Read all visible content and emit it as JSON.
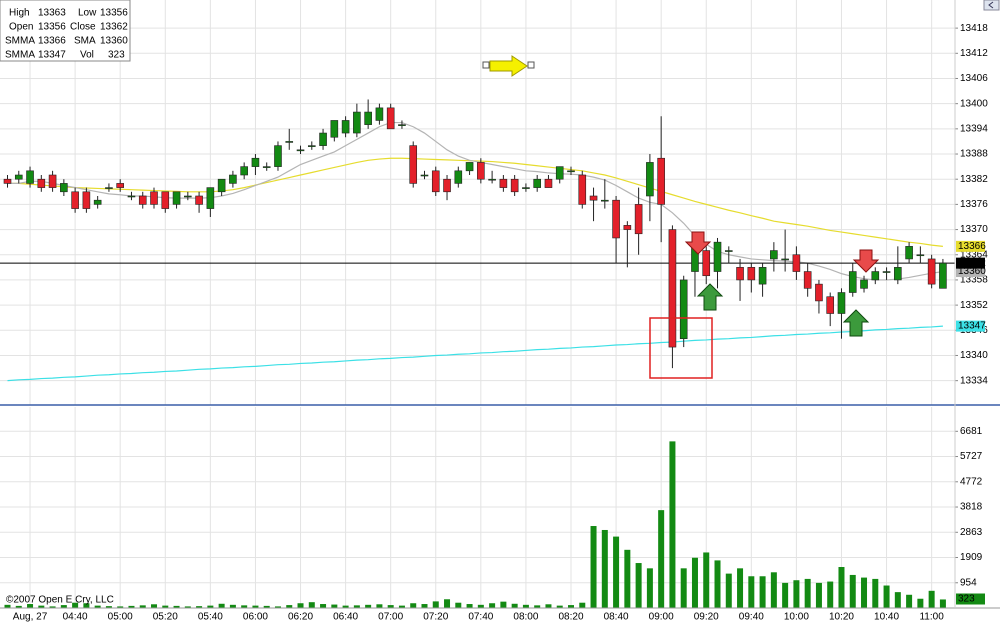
{
  "chart_data": {
    "type": "candlestick",
    "categories": [
      null,
      null,
      "Aug, 27",
      null,
      null,
      null,
      "04:40",
      null,
      null,
      null,
      "05:00",
      null,
      null,
      null,
      "05:20",
      null,
      null,
      null,
      "05:40",
      null,
      null,
      null,
      "06:00",
      null,
      null,
      null,
      "06:20",
      null,
      null,
      null,
      "06:40",
      null,
      null,
      null,
      "07:00",
      null,
      null,
      null,
      "07:20",
      null,
      null,
      null,
      "07:40",
      null,
      null,
      null,
      "08:00",
      null,
      null,
      null,
      "08:20",
      null,
      null,
      null,
      "08:40",
      null,
      null,
      null,
      "09:00",
      null,
      null,
      null,
      "09:20",
      null,
      null,
      null,
      "09:40",
      null,
      null,
      null,
      "10:00",
      null,
      null,
      null,
      "10:20",
      null,
      null,
      null,
      "10:40",
      null,
      null,
      null,
      "11:00",
      null
    ],
    "open": [
      13382,
      13382,
      13381,
      13382,
      13383,
      13379,
      13379,
      13379,
      13376,
      13380,
      13381,
      13378,
      13378,
      13379,
      13379,
      13376,
      13378,
      13378,
      13375,
      13379,
      13381,
      13383,
      13385,
      13385,
      13385,
      13391,
      13389,
      13390,
      13390,
      13392,
      13393,
      13393,
      13395,
      13396,
      13399,
      13395,
      13390,
      13383,
      13384,
      13382,
      13381,
      13384,
      13386,
      13382,
      13382,
      13382,
      13380,
      13380,
      13382,
      13382,
      13384,
      13383,
      13378,
      13377,
      13377,
      13371,
      13376,
      13378,
      13387,
      13370,
      13344,
      13360,
      13365,
      13360,
      13365,
      13361,
      13361,
      13357,
      13363,
      13363,
      13364,
      13360,
      13357,
      13354,
      13350,
      13355,
      13356,
      13358,
      13360,
      13358,
      13363,
      13364,
      13363,
      13356
    ],
    "high": [
      13383,
      13384,
      13385,
      13383,
      13384,
      13382,
      13380,
      13380,
      13378,
      13381,
      13382,
      13379,
      13379,
      13380,
      13379,
      13379,
      13379,
      13379,
      13380,
      13382,
      13384,
      13386,
      13388,
      13386,
      13391,
      13394,
      13390,
      13391,
      13394,
      13396,
      13397,
      13400,
      13401,
      13400,
      13400,
      13396,
      13391,
      13384,
      13385,
      13383,
      13385,
      13386,
      13387,
      13384,
      13383,
      13383,
      13381,
      13383,
      13383,
      13385,
      13385,
      13384,
      13380,
      13382,
      13378,
      13372,
      13380,
      13388,
      13397,
      13371,
      13359,
      13366,
      13366,
      13368,
      13366,
      13363,
      13362,
      13362,
      13367,
      13370,
      13366,
      13362,
      13358,
      13355,
      13356,
      13362,
      13359,
      13361,
      13361,
      13366,
      13367,
      13366,
      13364,
      13363
    ],
    "low": [
      13380,
      13381,
      13380,
      13379,
      13379,
      13378,
      13374,
      13374,
      13375,
      13379,
      13379,
      13377,
      13375,
      13375,
      13374,
      13375,
      13377,
      13374,
      13373,
      13378,
      13380,
      13382,
      13383,
      13384,
      13384,
      13389,
      13388,
      13389,
      13389,
      13391,
      13392,
      13392,
      13394,
      13395,
      13394,
      13394,
      13380,
      13382,
      13378,
      13377,
      13380,
      13383,
      13381,
      13381,
      13379,
      13378,
      13379,
      13379,
      13380,
      13381,
      13383,
      13375,
      13372,
      13375,
      13362,
      13361,
      13364,
      13372,
      13367,
      13337,
      13342,
      13354,
      13357,
      13356,
      13362,
      13353,
      13355,
      13354,
      13360,
      13360,
      13358,
      13354,
      13350,
      13347,
      13344,
      13354,
      13355,
      13357,
      13358,
      13357,
      13362,
      13362,
      13356,
      13356
    ],
    "close": [
      13381,
      13383,
      13384,
      13380,
      13380,
      13381,
      13375,
      13375,
      13377,
      13380,
      13380,
      13378,
      13376,
      13376,
      13375,
      13379,
      13378,
      13376,
      13380,
      13382,
      13383,
      13385,
      13387,
      13385,
      13390,
      13391,
      13389,
      13390,
      13393,
      13396,
      13396,
      13398,
      13398,
      13399,
      13394,
      13395,
      13381,
      13383,
      13379,
      13379,
      13384,
      13386,
      13382,
      13382,
      13380,
      13379,
      13380,
      13382,
      13380,
      13385,
      13384,
      13376,
      13377,
      13377,
      13368,
      13370,
      13369,
      13386,
      13376,
      13342,
      13358,
      13366,
      13359,
      13367,
      13365,
      13358,
      13358,
      13361,
      13365,
      13363,
      13360,
      13356,
      13353,
      13350,
      13355,
      13360,
      13358,
      13360,
      13360,
      13361,
      13366,
      13364,
      13357,
      13362
    ],
    "up_color": "#138a13",
    "down_color": "#e3202a",
    "ylim": [
      13328.2,
      13424.7
    ],
    "yticks": [
      13334,
      13340,
      13346,
      13352,
      13358,
      13364,
      13370,
      13376,
      13382,
      13388,
      13394,
      13400,
      13406,
      13412,
      13418
    ],
    "grid": true,
    "series": [
      {
        "name": "SMMA",
        "color": "#e6dc2e",
        "values": [
          13381,
          13381,
          13380.8,
          13380.6,
          13380.4,
          13380.2,
          13380,
          13379.9,
          13379.8,
          13379.7,
          13379.6,
          13379.5,
          13379.4,
          13379.3,
          13379.2,
          13379.1,
          13379,
          13379,
          13379,
          13379.2,
          13379.5,
          13380,
          13380.6,
          13381.2,
          13381.8,
          13382.4,
          13383,
          13383.6,
          13384.2,
          13384.8,
          13385.4,
          13386,
          13386.5,
          13386.8,
          13387,
          13387,
          13386.9,
          13386.8,
          13386.7,
          13386.6,
          13386.5,
          13386.4,
          13386.3,
          13386.2,
          13386,
          13385.8,
          13385.5,
          13385.2,
          13384.9,
          13384.6,
          13384.3,
          13384,
          13383.5,
          13383,
          13382.3,
          13381.5,
          13380.7,
          13379.9,
          13379.1,
          13378.3,
          13377.5,
          13376.7,
          13376,
          13375.3,
          13374.6,
          13374,
          13373.3,
          13372.7,
          13372,
          13371.6,
          13371.2,
          13370.8,
          13370.3,
          13369.8,
          13369.4,
          13369,
          13368.6,
          13368.2,
          13367.8,
          13367.4,
          13367,
          13366.7,
          13366.3,
          13366
        ]
      },
      {
        "name": "SMA",
        "color": "#b4b4b4",
        "values": [
          13381,
          13381,
          13381.5,
          13381.5,
          13381,
          13380.5,
          13380,
          13379.5,
          13379,
          13378.5,
          13378.3,
          13378,
          13378,
          13377.8,
          13377.6,
          13377.5,
          13377.5,
          13377.5,
          13377.6,
          13378,
          13378.6,
          13379.5,
          13380.5,
          13381.5,
          13382.5,
          13384,
          13385.5,
          13386.5,
          13387.5,
          13388.5,
          13390,
          13391.5,
          13393,
          13394.5,
          13395.5,
          13395.5,
          13394.5,
          13393,
          13391,
          13389,
          13387.5,
          13386.5,
          13386,
          13385.5,
          13385,
          13384.5,
          13384,
          13383.8,
          13383.5,
          13383.3,
          13383.2,
          13383,
          13382.5,
          13381.8,
          13380.5,
          13379,
          13377.5,
          13376.5,
          13376,
          13374,
          13371.5,
          13368.5,
          13366.5,
          13364.8,
          13364,
          13363.5,
          13363,
          13362.8,
          13362.6,
          13362.5,
          13362.3,
          13362,
          13361.3,
          13360.5,
          13359.5,
          13358.8,
          13358.3,
          13358,
          13358,
          13358.2,
          13358.6,
          13359.1,
          13359.6,
          13360
        ]
      },
      {
        "name": "SMMA",
        "color": "#3ce0e6",
        "values": [
          13334,
          13334.2,
          13334.3,
          13334.5,
          13334.6,
          13334.8,
          13334.9,
          13335.1,
          13335.3,
          13335.4,
          13335.6,
          13335.7,
          13335.9,
          13336,
          13336.2,
          13336.3,
          13336.5,
          13336.7,
          13336.8,
          13337,
          13337.1,
          13337.3,
          13337.4,
          13337.6,
          13337.8,
          13337.9,
          13338.1,
          13338.2,
          13338.4,
          13338.5,
          13338.7,
          13338.9,
          13339,
          13339.2,
          13339.3,
          13339.5,
          13339.6,
          13339.8,
          13340,
          13340.1,
          13340.3,
          13340.4,
          13340.6,
          13340.7,
          13340.9,
          13341,
          13341.2,
          13341.4,
          13341.5,
          13341.7,
          13341.8,
          13342,
          13342.1,
          13342.3,
          13342.5,
          13342.6,
          13342.8,
          13342.9,
          13343.1,
          13343.2,
          13343.4,
          13343.6,
          13343.7,
          13343.9,
          13344,
          13344.2,
          13344.3,
          13344.5,
          13344.7,
          13344.8,
          13345,
          13345.1,
          13345.3,
          13345.4,
          13345.6,
          13345.7,
          13345.9,
          13346.1,
          13346.2,
          13346.4,
          13346.5,
          13346.7,
          13346.8,
          13347
        ]
      }
    ],
    "volume": {
      "type": "bar",
      "color": "#138a13",
      "values": [
        120,
        80,
        150,
        90,
        60,
        110,
        200,
        180,
        90,
        70,
        60,
        80,
        100,
        140,
        90,
        80,
        60,
        70,
        90,
        160,
        120,
        100,
        90,
        80,
        60,
        110,
        180,
        220,
        150,
        130,
        90,
        100,
        120,
        140,
        110,
        90,
        180,
        150,
        250,
        330,
        200,
        150,
        120,
        180,
        240,
        160,
        120,
        100,
        140,
        90,
        110,
        200,
        3100,
        2950,
        2700,
        2200,
        1700,
        1500,
        3700,
        6300,
        1500,
        1900,
        2100,
        1800,
        1300,
        1500,
        1200,
        1200,
        1350,
        950,
        1050,
        1100,
        950,
        1000,
        1550,
        1250,
        1150,
        1100,
        850,
        600,
        500,
        350,
        650,
        323
      ],
      "ylim": [
        0,
        7600
      ],
      "yticks": [
        954,
        1909,
        2863,
        3818,
        4772,
        5727,
        6681
      ]
    },
    "info_labels": {
      "high": "High",
      "low": "Low",
      "open": "Open",
      "close": "Close",
      "vol": "Vol"
    },
    "copyright": "©2007 Open E Cry, LLC"
  }
}
